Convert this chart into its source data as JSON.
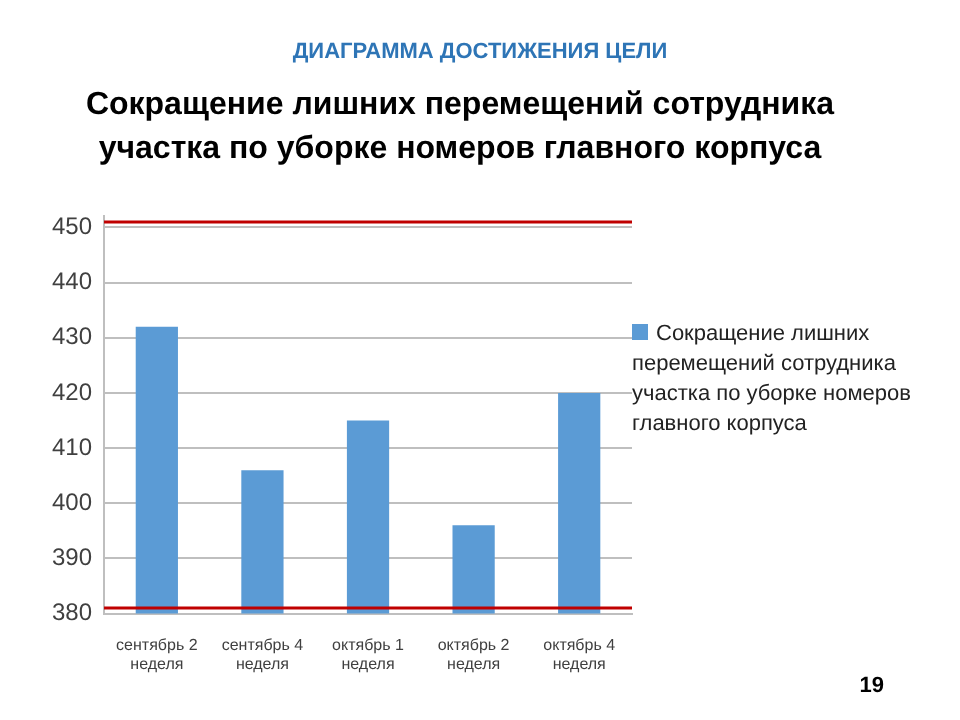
{
  "chart_data": {
    "type": "bar",
    "title": "Сокращение лишних перемещений сотрудника участка по уборке номеров главного корпуса",
    "categories": [
      "сентябрь 2 неделя",
      "сентябрь 4 неделя",
      "октябрь 1 неделя",
      "октябрь 2 неделя",
      "октябрь 4 неделя"
    ],
    "series": [
      {
        "name": "Сокращение лишних перемещений сотрудника участка по уборке номеров главного корпуса",
        "color": "#5b9bd5",
        "values": [
          432,
          406,
          415,
          396,
          420
        ]
      }
    ],
    "ylim": [
      380,
      452
    ],
    "yticks": [
      380,
      390,
      400,
      410,
      420,
      430,
      440,
      450
    ],
    "grid": "y",
    "legend": "right",
    "ref_lines": [
      {
        "axis": "y",
        "value": 451,
        "color": "#c00000"
      },
      {
        "axis": "y",
        "value": 381,
        "color": "#c00000"
      }
    ],
    "annotations": [
      "ДИАГРАММА ДОСТИЖЕНИЯ ЦЕЛИ",
      "19"
    ]
  }
}
